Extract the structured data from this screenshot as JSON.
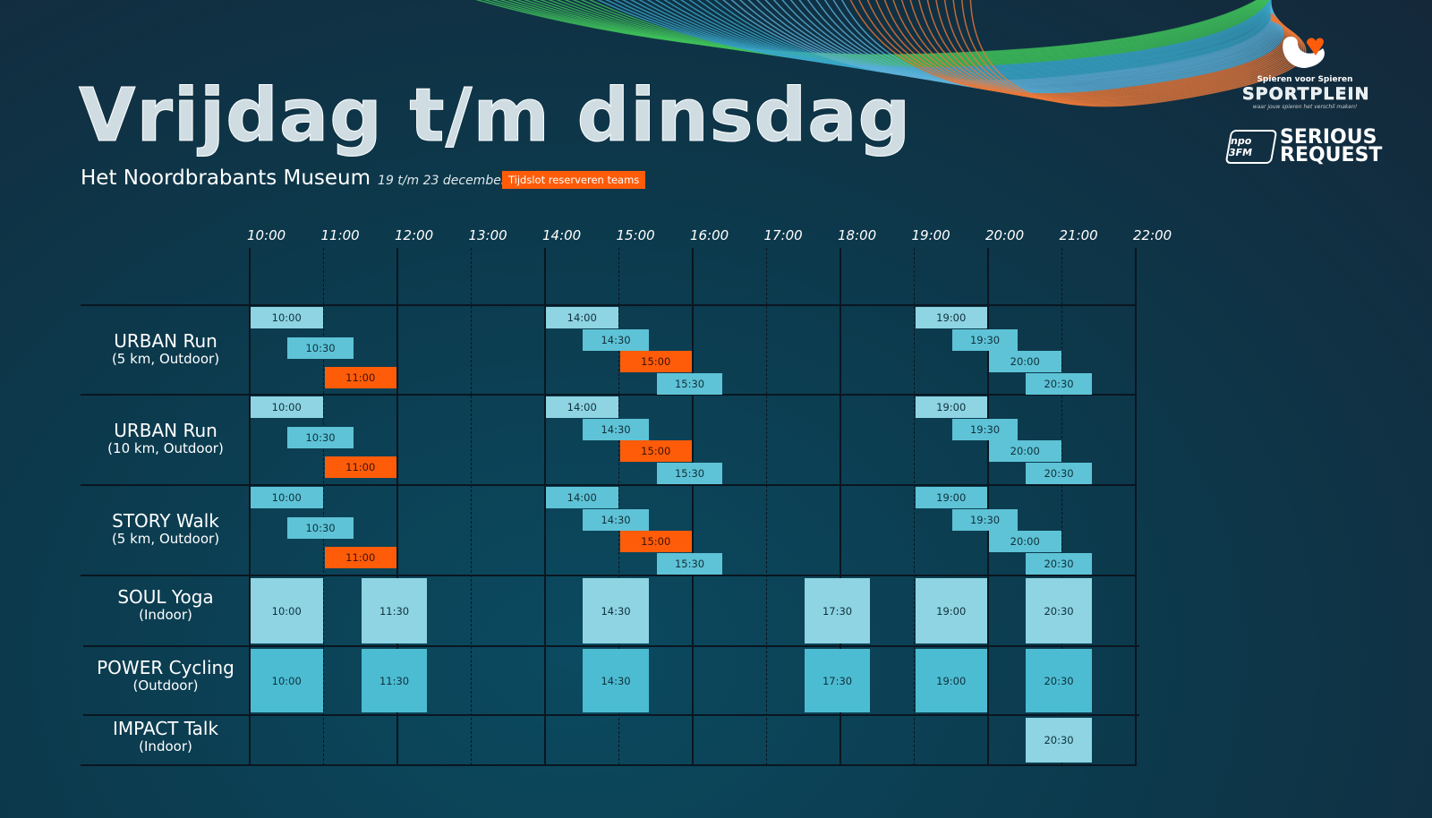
{
  "header": {
    "title": "Vrijdag t/m dinsdag",
    "venue": "Het Noordbrabants Museum",
    "dates": "19 t/m 23 december",
    "badge": "Tijdslot reserveren teams"
  },
  "logos": {
    "sportplein_top": "Spieren voor Spieren",
    "sportplein_main": "SPORTPLEIN",
    "sportplein_tag": "waar jouw spieren het verschil maken!",
    "npo": "npo 3FM",
    "serious_request": "SERIOUS REQUEST"
  },
  "colors": {
    "light": "#8ed4e2",
    "mid": "#5ec3d6",
    "dark": "#4cbcd2",
    "orange": "#ff5c0a"
  },
  "hours": [
    "10:00",
    "11:00",
    "12:00",
    "13:00",
    "14:00",
    "15:00",
    "16:00",
    "17:00",
    "18:00",
    "19:00",
    "20:00",
    "21:00",
    "22:00"
  ],
  "rows": [
    {
      "name": "URBAN Run",
      "sub": "(5 km, Outdoor)",
      "type": "stagger",
      "groups": [
        [
          {
            "t": "10:00",
            "c": "light"
          },
          {
            "t": "10:30",
            "c": "mid"
          },
          {
            "t": "11:00",
            "c": "orange"
          }
        ],
        [
          {
            "t": "14:00",
            "c": "light"
          },
          {
            "t": "14:30",
            "c": "mid"
          },
          {
            "t": "15:00",
            "c": "orange"
          },
          {
            "t": "15:30",
            "c": "mid"
          }
        ],
        [
          {
            "t": "19:00",
            "c": "light"
          },
          {
            "t": "19:30",
            "c": "mid"
          },
          {
            "t": "20:00",
            "c": "mid"
          },
          {
            "t": "20:30",
            "c": "mid"
          }
        ]
      ]
    },
    {
      "name": "URBAN Run",
      "sub": "(10 km, Outdoor)",
      "type": "stagger",
      "groups": [
        [
          {
            "t": "10:00",
            "c": "light"
          },
          {
            "t": "10:30",
            "c": "mid"
          },
          {
            "t": "11:00",
            "c": "orange"
          }
        ],
        [
          {
            "t": "14:00",
            "c": "light"
          },
          {
            "t": "14:30",
            "c": "mid"
          },
          {
            "t": "15:00",
            "c": "orange"
          },
          {
            "t": "15:30",
            "c": "mid"
          }
        ],
        [
          {
            "t": "19:00",
            "c": "light"
          },
          {
            "t": "19:30",
            "c": "mid"
          },
          {
            "t": "20:00",
            "c": "mid"
          },
          {
            "t": "20:30",
            "c": "mid"
          }
        ]
      ]
    },
    {
      "name": "STORY Walk",
      "sub": "(5 km, Outdoor)",
      "type": "stagger",
      "groups": [
        [
          {
            "t": "10:00",
            "c": "mid"
          },
          {
            "t": "10:30",
            "c": "mid"
          },
          {
            "t": "11:00",
            "c": "orange"
          }
        ],
        [
          {
            "t": "14:00",
            "c": "mid"
          },
          {
            "t": "14:30",
            "c": "mid"
          },
          {
            "t": "15:00",
            "c": "orange"
          },
          {
            "t": "15:30",
            "c": "mid"
          }
        ],
        [
          {
            "t": "19:00",
            "c": "mid"
          },
          {
            "t": "19:30",
            "c": "mid"
          },
          {
            "t": "20:00",
            "c": "mid"
          },
          {
            "t": "20:30",
            "c": "mid"
          }
        ]
      ]
    },
    {
      "name": "SOUL Yoga",
      "sub": "(Indoor)",
      "type": "block",
      "groups": [
        [
          {
            "t": "10:00",
            "c": "light"
          },
          {
            "t": "11:30",
            "c": "light"
          },
          {
            "t": "14:30",
            "c": "light"
          },
          {
            "t": "17:30",
            "c": "light"
          },
          {
            "t": "19:00",
            "c": "light"
          },
          {
            "t": "20:30",
            "c": "light"
          }
        ]
      ]
    },
    {
      "name": "POWER Cycling",
      "sub": "(Outdoor)",
      "type": "block",
      "groups": [
        [
          {
            "t": "10:00",
            "c": "dark"
          },
          {
            "t": "11:30",
            "c": "dark"
          },
          {
            "t": "14:30",
            "c": "dark"
          },
          {
            "t": "17:30",
            "c": "dark"
          },
          {
            "t": "19:00",
            "c": "dark"
          },
          {
            "t": "20:30",
            "c": "dark"
          }
        ]
      ]
    },
    {
      "name": "IMPACT Talk",
      "sub": "(Indoor)",
      "type": "block",
      "groups": [
        [
          {
            "t": "20:30",
            "c": "light"
          }
        ]
      ]
    }
  ]
}
